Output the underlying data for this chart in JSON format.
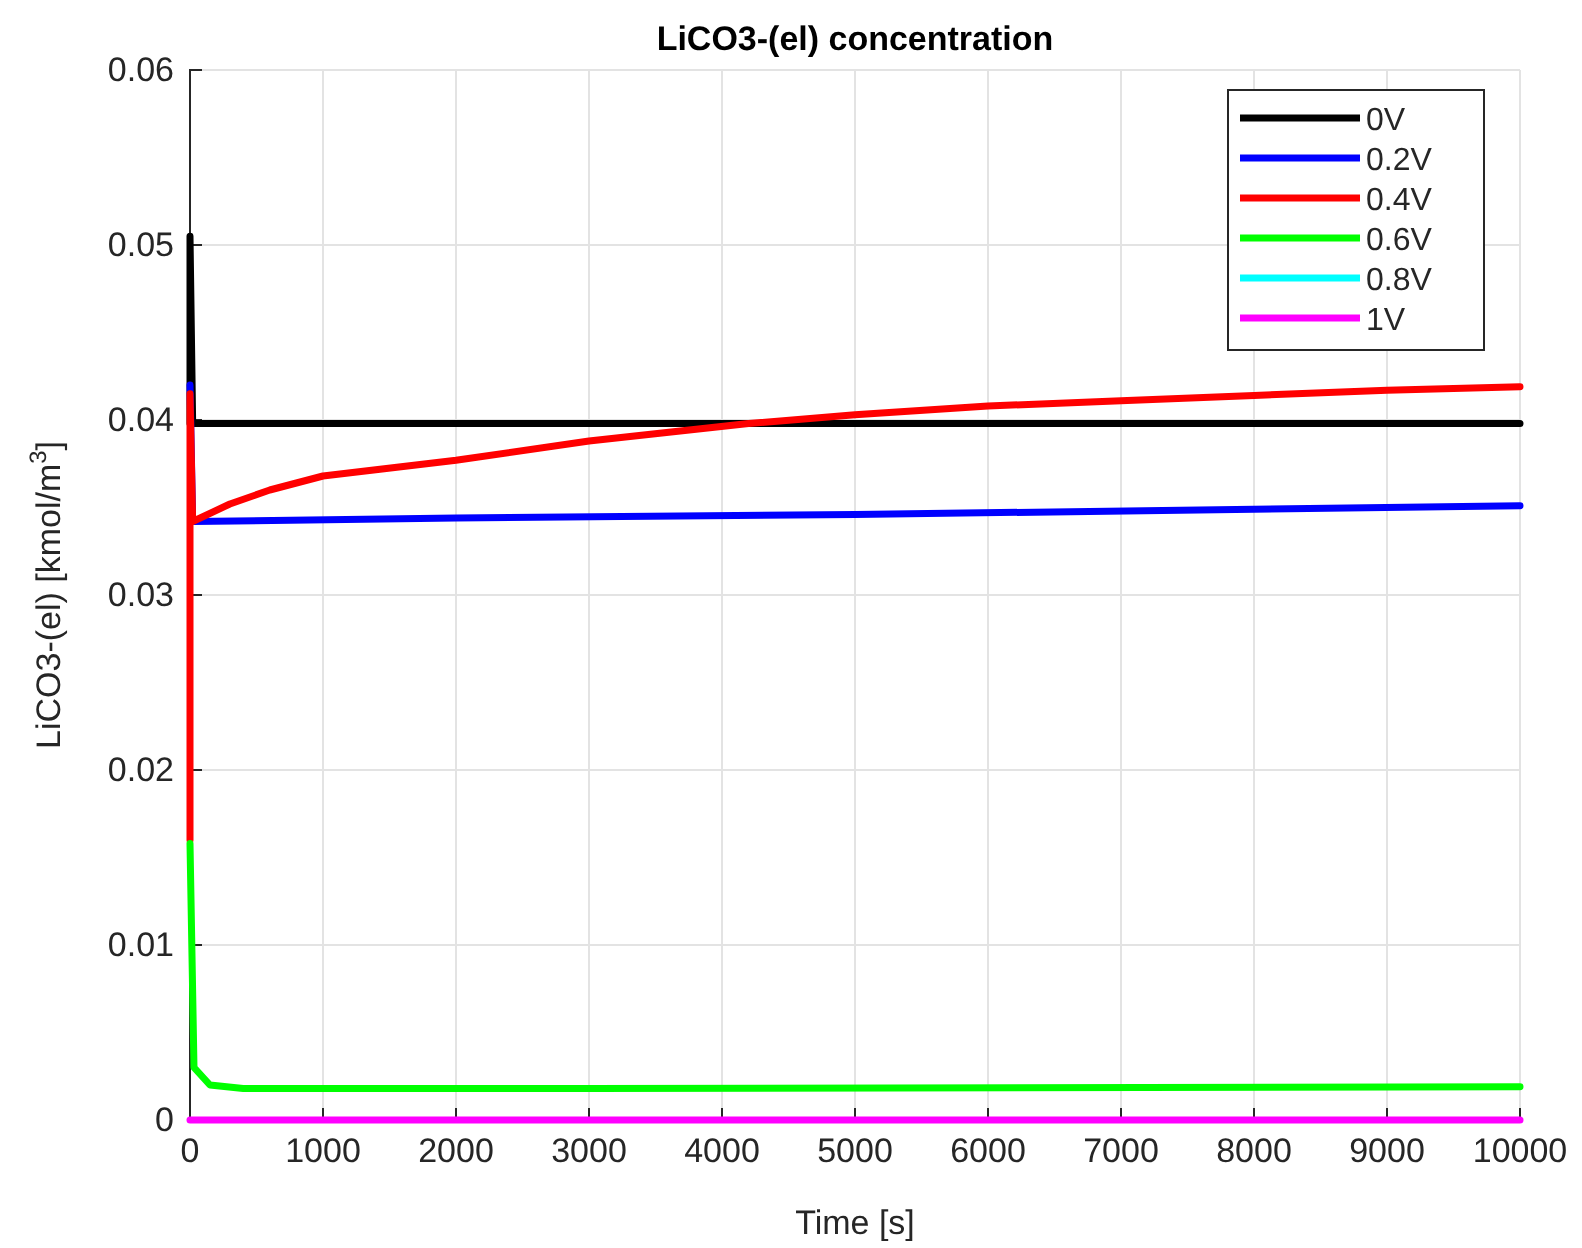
{
  "chart_data": {
    "type": "line",
    "title": "LiCO3-(el) concentration",
    "xlabel": "Time [s]",
    "ylabel": "LiCO3-(el) [kmol/m$^{3}$]",
    "xlim": [
      0,
      10000
    ],
    "xticks": [
      0,
      1000,
      2000,
      3000,
      4000,
      5000,
      6000,
      7000,
      8000,
      9000,
      10000
    ],
    "ylim": [
      0,
      0.06
    ],
    "yticks": [
      0,
      0.01,
      0.02,
      0.03,
      0.04,
      0.05,
      0.06
    ],
    "grid": true,
    "legend": "top right",
    "line_style": "solid",
    "series": [
      {
        "name": "0V",
        "color": "#000000",
        "x": [
          0,
          0,
          20,
          10000
        ],
        "values": [
          0.0398,
          0.0505,
          0.0398,
          0.0398
        ]
      },
      {
        "name": "0.2V",
        "color": "#0000ff",
        "x": [
          0,
          20,
          2000,
          5000,
          8000,
          10000
        ],
        "values": [
          0.042,
          0.0342,
          0.0344,
          0.0346,
          0.0349,
          0.0351
        ]
      },
      {
        "name": "0.4V",
        "color": "#ff0000",
        "x": [
          0,
          0,
          20,
          300,
          600,
          1000,
          2000,
          3000,
          4200,
          5000,
          6000,
          7000,
          8000,
          9000,
          10000
        ],
        "values": [
          0.016,
          0.0415,
          0.0342,
          0.0352,
          0.036,
          0.0368,
          0.0377,
          0.0388,
          0.0398,
          0.0403,
          0.0408,
          0.0411,
          0.0414,
          0.0417,
          0.0419
        ]
      },
      {
        "name": "0.6V",
        "color": "#00ff00",
        "x": [
          0,
          30,
          150,
          400,
          3000,
          10000
        ],
        "values": [
          0.0158,
          0.003,
          0.002,
          0.0018,
          0.0018,
          0.0019
        ]
      },
      {
        "name": "0.8V",
        "color": "#00ffff"
      },
      {
        "name": "1V",
        "color": "#ff00ff",
        "x": [
          0,
          10000
        ],
        "values": [
          0,
          0
        ]
      }
    ]
  }
}
